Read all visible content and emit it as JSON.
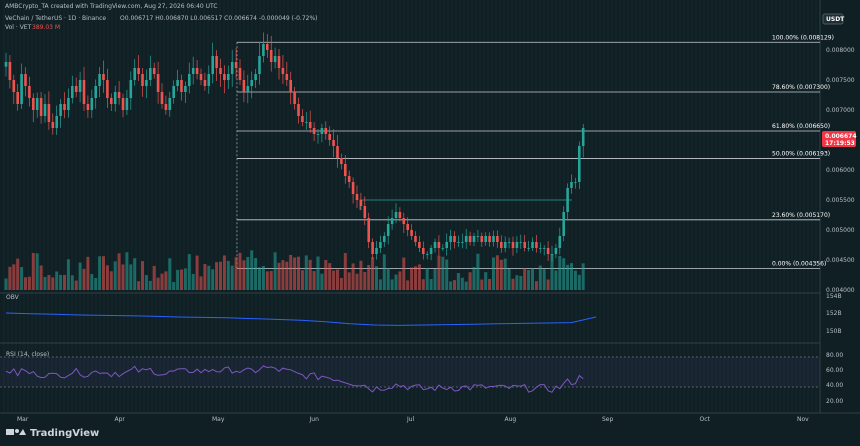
{
  "header": {
    "creator": "AMBCrypto_TA created with TradingView.com, Aug 27, 2026 06:40 UTC",
    "symbol": "VeChain / TetherUS · 1D · Binance",
    "ohlc": "O0.006717 H0.006870 L0.006517 C0.006674 -0.000049 (-0.72%)",
    "volume_label": "Vol · VET",
    "volume_value": "389.03 M",
    "currency": "USDT"
  },
  "footer": {
    "brand": "TradingView"
  },
  "price_badge": {
    "value": "0.006674",
    "countdown": "17:19:53"
  },
  "colors": {
    "background": "#0f1f23",
    "up": "#26a69a",
    "down": "#ef5350",
    "badge": "#f23645",
    "obv": "#2962ff",
    "rsi": "#7e57c2"
  },
  "chart_data": {
    "type": "candlestick",
    "price_axis": {
      "min": 0.004,
      "max": 0.0085,
      "ticks": [
        "0.008000",
        "0.007500",
        "0.007000",
        "0.006500",
        "0.006000",
        "0.005500",
        "0.005000",
        "0.004500",
        "0.004000"
      ]
    },
    "time_axis": [
      "Mar",
      "Apr",
      "May",
      "Jun",
      "Jul",
      "Aug",
      "Sep",
      "Oct",
      "Nov"
    ],
    "fib_levels": [
      {
        "label": "100.00% (0.008129)",
        "value": 0.008129
      },
      {
        "label": "78.60% (0.007300)",
        "value": 0.0073
      },
      {
        "label": "61.80% (0.006650)",
        "value": 0.00665
      },
      {
        "label": "50.00% (0.006193)",
        "value": 0.006193
      },
      {
        "label": "23.60% (0.005170)",
        "value": 0.00517
      },
      {
        "label": "0.00% (0.004356)",
        "value": 0.004356
      }
    ],
    "close_series": [
      0.0078,
      0.0075,
      0.0073,
      0.0071,
      0.0076,
      0.0074,
      0.0072,
      0.007,
      0.0072,
      0.0069,
      0.0071,
      0.0068,
      0.0067,
      0.0069,
      0.0071,
      0.007,
      0.0072,
      0.0074,
      0.0073,
      0.0075,
      0.0071,
      0.007,
      0.0072,
      0.0074,
      0.0076,
      0.0075,
      0.0072,
      0.0071,
      0.0073,
      0.0072,
      0.007,
      0.0072,
      0.0075,
      0.0077,
      0.0076,
      0.0074,
      0.0075,
      0.0077,
      0.0076,
      0.0073,
      0.0071,
      0.007,
      0.0072,
      0.0074,
      0.0075,
      0.0073,
      0.0074,
      0.0076,
      0.0077,
      0.0076,
      0.0075,
      0.0074,
      0.0076,
      0.0079,
      0.0077,
      0.0076,
      0.0075,
      0.0076,
      0.0078,
      0.0077,
      0.0075,
      0.0073,
      0.0074,
      0.0075,
      0.0076,
      0.0079,
      0.0081,
      0.008,
      0.0078,
      0.0079,
      0.0077,
      0.0076,
      0.0075,
      0.0073,
      0.0071,
      0.0069,
      0.0068,
      0.0068,
      0.0067,
      0.0066,
      0.0066,
      0.0067,
      0.0066,
      0.0065,
      0.0064,
      0.0062,
      0.0061,
      0.0059,
      0.0058,
      0.0056,
      0.0055,
      0.0054,
      0.0052,
      0.0048,
      0.0046,
      0.0047,
      0.0048,
      0.0049,
      0.0051,
      0.0052,
      0.0053,
      0.0052,
      0.0051,
      0.005,
      0.0049,
      0.0048,
      0.0047,
      0.0046,
      0.0046,
      0.0047,
      0.0048,
      0.0047,
      0.0047,
      0.0048,
      0.0049,
      0.0048,
      0.0048,
      0.0048,
      0.0049,
      0.0048,
      0.0049,
      0.0049,
      0.0048,
      0.0049,
      0.0048,
      0.0049,
      0.0048,
      0.0047,
      0.0048,
      0.0048,
      0.0047,
      0.0048,
      0.0048,
      0.0047,
      0.0047,
      0.0048,
      0.0047,
      0.0047,
      0.0047,
      0.0046,
      0.0046,
      0.0047,
      0.0049,
      0.0053,
      0.0057,
      0.0058,
      0.0058,
      0.0064,
      0.0067
    ],
    "volume": {
      "max_label_hint": "389.03 M"
    },
    "indicators": [
      {
        "name": "OBV",
        "values": [
          0.6,
          0.58,
          0.57,
          0.55,
          0.54,
          0.53,
          0.52,
          0.5,
          0.49,
          0.48,
          0.46,
          0.44,
          0.42,
          0.38,
          0.33,
          0.3,
          0.29,
          0.3,
          0.31,
          0.32,
          0.33,
          0.34,
          0.35,
          0.36,
          0.5
        ],
        "ticks": [
          "154B",
          "152B",
          "150B"
        ]
      },
      {
        "name": "RSI (14, close)",
        "ticks": [
          "80.00",
          "60.00",
          "40.00",
          "20.00"
        ]
      }
    ]
  }
}
